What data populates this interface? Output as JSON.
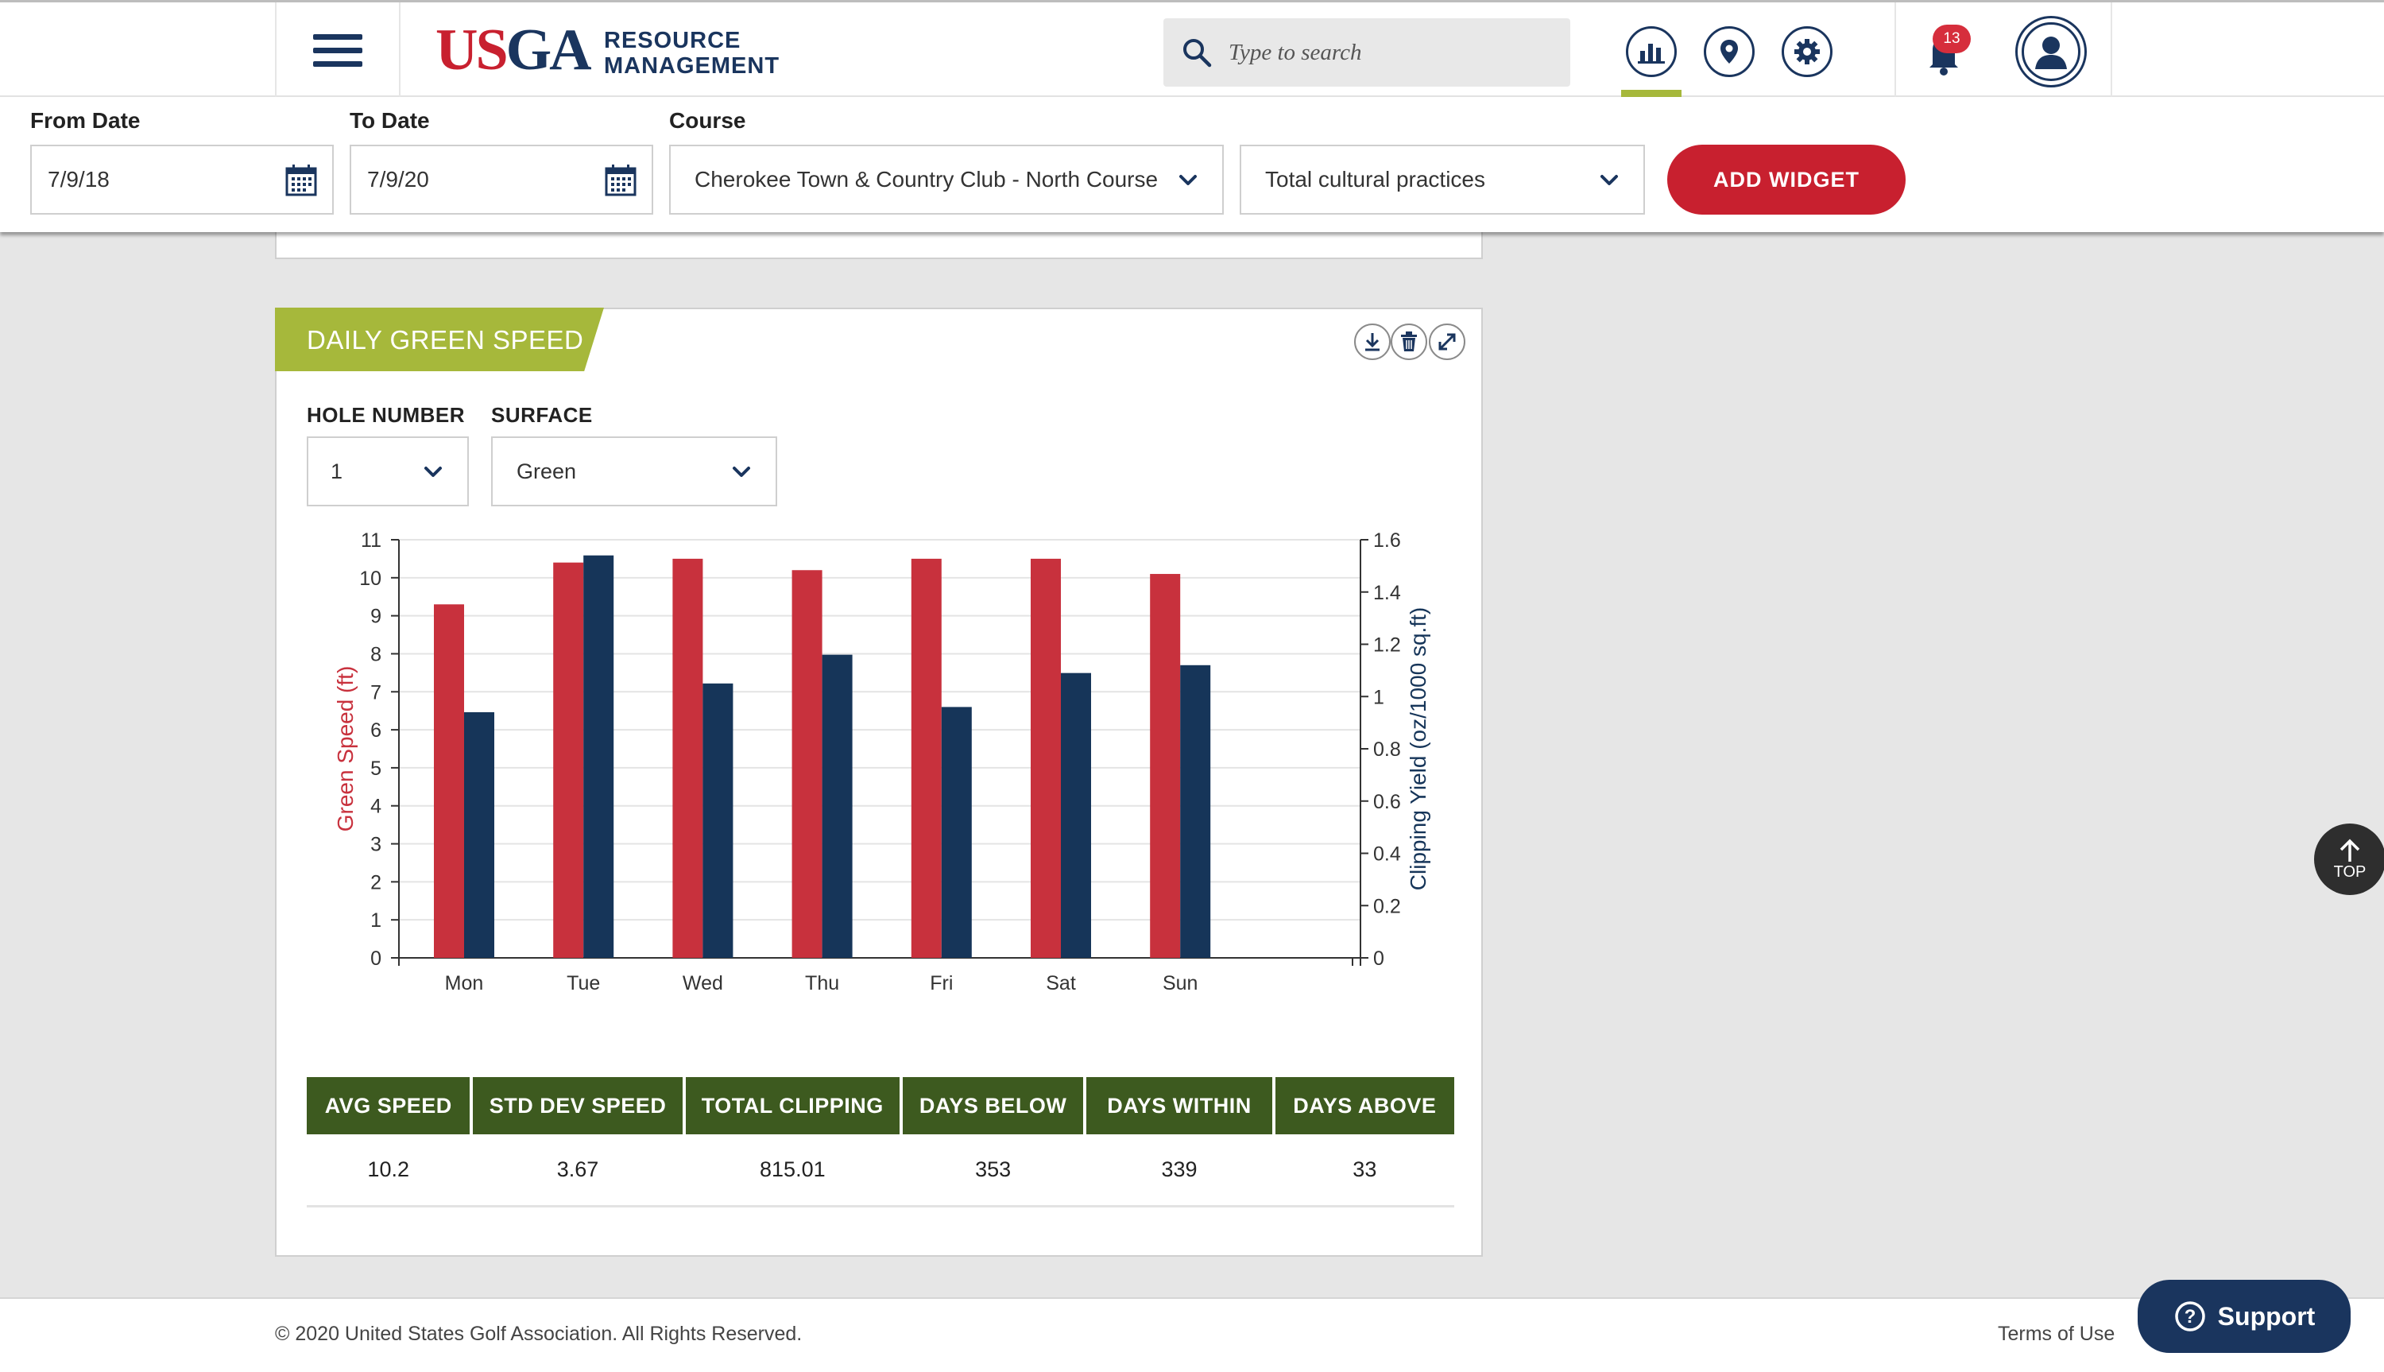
{
  "header": {
    "logo_usga_u": "US",
    "logo_usga_ga": "GA",
    "logo_line1": "RESOURCE",
    "logo_line2": "MANAGEMENT",
    "search_placeholder": "Type to search",
    "notification_count": "13",
    "icons": [
      "menu-icon",
      "search-icon",
      "bar-chart-icon",
      "map-pin-icon",
      "gear-icon",
      "bell-icon",
      "user-icon"
    ]
  },
  "filters": {
    "from_label": "From Date",
    "from_value": "7/9/18",
    "to_label": "To Date",
    "to_value": "7/9/20",
    "course_label": "Course",
    "course_value": "Cherokee Town & Country Club - North Course",
    "metric_value": "Total cultural practices",
    "add_widget": "ADD WIDGET"
  },
  "widget": {
    "title": "DAILY GREEN SPEED",
    "hole_label": "HOLE NUMBER",
    "hole_value": "1",
    "surface_label": "SURFACE",
    "surface_value": "Green",
    "actions": [
      "download-icon",
      "trash-icon",
      "expand-icon"
    ]
  },
  "chart_data": {
    "type": "bar",
    "categories": [
      "Mon",
      "Tue",
      "Wed",
      "Thu",
      "Fri",
      "Sat",
      "Sun"
    ],
    "series": [
      {
        "name": "Green Speed (ft)",
        "axis": "left",
        "color": "#c8313d",
        "values": [
          9.3,
          10.4,
          10.5,
          10.2,
          10.5,
          10.5,
          10.1
        ]
      },
      {
        "name": "Clipping Yield (oz/1000 sq.ft)",
        "axis": "right",
        "color": "#163559",
        "values": [
          0.94,
          1.54,
          1.05,
          1.16,
          0.96,
          1.09,
          1.12
        ]
      }
    ],
    "ylabel": "Green Speed (ft)",
    "y2label": "Clipping Yield (oz/1000 sq.ft)",
    "ylim": [
      0,
      11
    ],
    "y2lim": [
      0,
      1.6
    ],
    "yticks": [
      "0",
      "1",
      "2",
      "3",
      "4",
      "5",
      "6",
      "7",
      "8",
      "9",
      "10",
      "11"
    ],
    "y2ticks": [
      "0",
      "0.2",
      "0.4",
      "0.6",
      "0.8",
      "1",
      "1.2",
      "1.4",
      "1.6"
    ],
    "grid": true,
    "legend": "none"
  },
  "stats": {
    "headers": [
      "AVG SPEED",
      "STD DEV SPEED",
      "TOTAL CLIPPING",
      "DAYS BELOW",
      "DAYS WITHIN",
      "DAYS ABOVE"
    ],
    "values": [
      "10.2",
      "3.67",
      "815.01",
      "353",
      "339",
      "33"
    ]
  },
  "footer": {
    "copyright": "© 2020 United States Golf Association. All Rights Reserved.",
    "terms": "Terms of Use",
    "support": "Support",
    "top": "TOP"
  }
}
